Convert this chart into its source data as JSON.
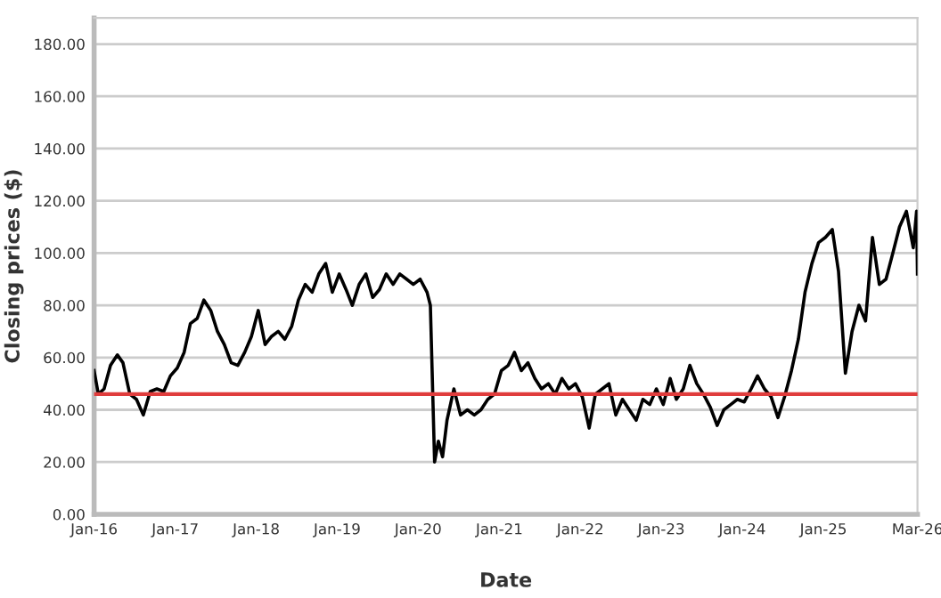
{
  "chart_data": {
    "type": "line",
    "xlabel": "Date",
    "ylabel": "Closing prices ($)",
    "grid": "y",
    "legend": false,
    "xlim": [
      "2016-01-01",
      "2026-03-01"
    ],
    "xticks": [
      {
        "value": "2016-01-01",
        "label": "Jan-16"
      },
      {
        "value": "2017-01-01",
        "label": "Jan-17"
      },
      {
        "value": "2018-01-01",
        "label": "Jan-18"
      },
      {
        "value": "2019-01-01",
        "label": "Jan-19"
      },
      {
        "value": "2020-01-01",
        "label": "Jan-20"
      },
      {
        "value": "2021-01-01",
        "label": "Jan-21"
      },
      {
        "value": "2022-01-01",
        "label": "Jan-22"
      },
      {
        "value": "2023-01-01",
        "label": "Jan-23"
      },
      {
        "value": "2024-01-01",
        "label": "Jan-24"
      },
      {
        "value": "2025-01-01",
        "label": "Jan-25"
      },
      {
        "value": "2026-03-01",
        "label": "Mar-26"
      }
    ],
    "ylim": [
      0,
      190
    ],
    "yticks": [
      {
        "value": 0,
        "label": "0.00"
      },
      {
        "value": 20,
        "label": "20.00"
      },
      {
        "value": 40,
        "label": "40.00"
      },
      {
        "value": 60,
        "label": "60.00"
      },
      {
        "value": 80,
        "label": "80.00"
      },
      {
        "value": 100,
        "label": "100.00"
      },
      {
        "value": 120,
        "label": "120.00"
      },
      {
        "value": 140,
        "label": "140.00"
      },
      {
        "value": 160,
        "label": "160.00"
      },
      {
        "value": 180,
        "label": "180.00"
      }
    ],
    "ref_lines": [
      {
        "axis": "y",
        "value": 46,
        "color": "#e03c3c"
      }
    ],
    "series": [
      {
        "color": "#000000",
        "x": [
          "2016-01-01",
          "2016-01-20",
          "2016-02-15",
          "2016-03-15",
          "2016-04-15",
          "2016-05-10",
          "2016-06-10",
          "2016-07-10",
          "2016-08-10",
          "2016-09-10",
          "2016-10-10",
          "2016-11-10",
          "2016-12-10",
          "2017-01-10",
          "2017-02-10",
          "2017-03-10",
          "2017-04-10",
          "2017-05-10",
          "2017-06-10",
          "2017-07-10",
          "2017-08-10",
          "2017-09-10",
          "2017-10-10",
          "2017-11-10",
          "2017-12-10",
          "2018-01-10",
          "2018-02-10",
          "2018-03-10",
          "2018-04-10",
          "2018-05-10",
          "2018-06-10",
          "2018-07-10",
          "2018-08-10",
          "2018-09-10",
          "2018-10-10",
          "2018-11-10",
          "2018-12-10",
          "2019-01-10",
          "2019-02-10",
          "2019-03-10",
          "2019-04-10",
          "2019-05-10",
          "2019-06-10",
          "2019-07-10",
          "2019-08-10",
          "2019-09-10",
          "2019-10-10",
          "2019-11-10",
          "2019-12-10",
          "2020-01-10",
          "2020-02-10",
          "2020-02-25",
          "2020-03-15",
          "2020-04-01",
          "2020-04-20",
          "2020-05-10",
          "2020-06-10",
          "2020-07-10",
          "2020-08-10",
          "2020-09-10",
          "2020-10-10",
          "2020-11-10",
          "2020-12-10",
          "2021-01-10",
          "2021-02-10",
          "2021-03-10",
          "2021-04-10",
          "2021-05-10",
          "2021-06-10",
          "2021-07-10",
          "2021-08-10",
          "2021-09-10",
          "2021-10-10",
          "2021-11-10",
          "2021-12-10",
          "2022-01-10",
          "2022-02-10",
          "2022-03-10",
          "2022-04-10",
          "2022-05-10",
          "2022-06-10",
          "2022-07-10",
          "2022-08-10",
          "2022-09-10",
          "2022-10-10",
          "2022-11-10",
          "2022-12-10",
          "2023-01-10",
          "2023-02-10",
          "2023-03-10",
          "2023-04-10",
          "2023-05-10",
          "2023-06-10",
          "2023-07-10",
          "2023-08-10",
          "2023-09-10",
          "2023-10-10",
          "2023-11-10",
          "2023-12-10",
          "2024-01-10",
          "2024-02-10",
          "2024-03-10",
          "2024-04-10",
          "2024-05-10",
          "2024-06-10",
          "2024-07-10",
          "2024-08-10",
          "2024-09-10",
          "2024-10-10",
          "2024-11-10",
          "2024-12-10",
          "2025-01-10",
          "2025-02-10",
          "2025-03-10",
          "2025-04-10",
          "2025-05-10",
          "2025-06-10",
          "2025-07-10",
          "2025-08-10",
          "2025-09-10",
          "2025-10-10",
          "2025-11-10",
          "2025-12-10",
          "2026-01-10",
          "2026-02-10",
          "2026-02-25",
          "2026-03-01"
        ],
        "values": [
          55,
          46,
          48,
          57,
          61,
          58,
          46,
          44,
          38,
          47,
          48,
          47,
          53,
          56,
          62,
          73,
          75,
          82,
          78,
          70,
          65,
          58,
          57,
          62,
          68,
          78,
          65,
          68,
          70,
          67,
          72,
          82,
          88,
          85,
          92,
          96,
          85,
          92,
          86,
          80,
          88,
          92,
          83,
          86,
          92,
          88,
          92,
          90,
          88,
          90,
          85,
          80,
          20,
          28,
          22,
          36,
          48,
          38,
          40,
          38,
          40,
          44,
          46,
          55,
          57,
          62,
          55,
          58,
          52,
          48,
          50,
          46,
          52,
          48,
          50,
          45,
          33,
          46,
          48,
          50,
          38,
          44,
          40,
          36,
          44,
          42,
          48,
          42,
          52,
          44,
          48,
          57,
          50,
          46,
          41,
          34,
          40,
          42,
          44,
          43,
          48,
          53,
          48,
          45,
          37,
          45,
          55,
          67,
          85,
          96,
          104,
          106,
          109,
          93,
          54,
          70,
          80,
          74,
          106,
          88,
          90,
          100,
          110,
          116,
          102,
          116,
          92
        ]
      }
    ]
  }
}
